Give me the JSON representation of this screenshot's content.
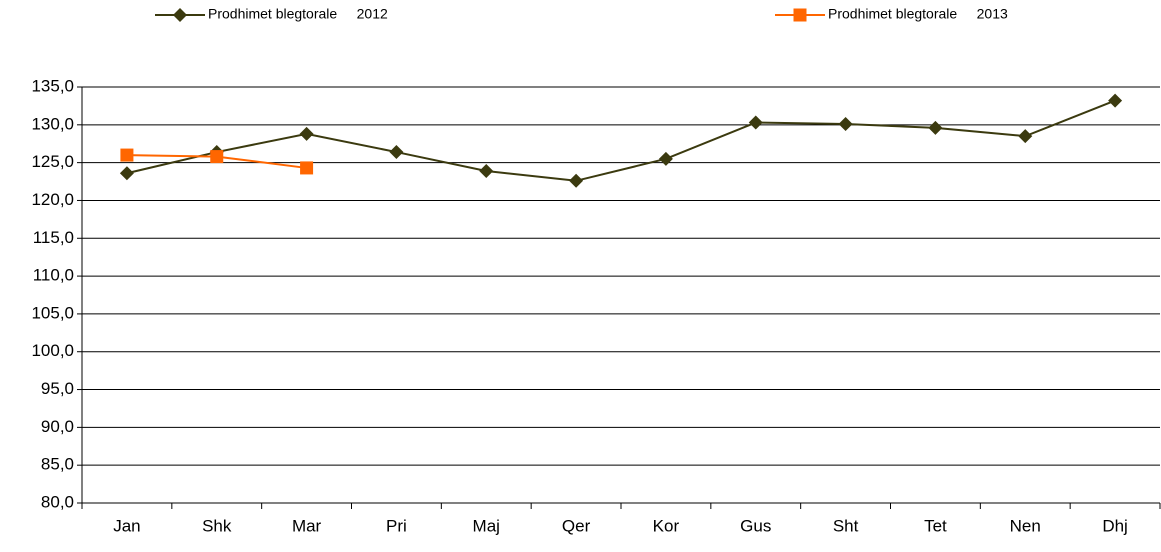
{
  "chart_data": {
    "type": "line",
    "categories": [
      "Jan",
      "Shk",
      "Mar",
      "Pri",
      "Maj",
      "Qer",
      "Kor",
      "Gus",
      "Sht",
      "Tet",
      "Nen",
      "Dhj"
    ],
    "series": [
      {
        "name": "Prodhimet blegtorale     2012",
        "color": "#3b3a0f",
        "marker": "diamond",
        "values": [
          123.6,
          126.4,
          128.8,
          126.4,
          123.9,
          122.6,
          125.5,
          130.3,
          130.1,
          129.6,
          128.5,
          133.2
        ]
      },
      {
        "name": "Prodhimet blegtorale     2013",
        "color": "#ff6600",
        "marker": "square",
        "values": [
          126.0,
          125.8,
          124.3,
          null,
          null,
          null,
          null,
          null,
          null,
          null,
          null,
          null
        ]
      }
    ],
    "ylim": [
      80,
      135
    ],
    "yticks": [
      {
        "value": 80,
        "label": "80,0"
      },
      {
        "value": 85,
        "label": "85,0"
      },
      {
        "value": 90,
        "label": "90,0"
      },
      {
        "value": 95,
        "label": "95,0"
      },
      {
        "value": 100,
        "label": "100,0"
      },
      {
        "value": 105,
        "label": "105,0"
      },
      {
        "value": 110,
        "label": "110,0"
      },
      {
        "value": 115,
        "label": "115,0"
      },
      {
        "value": 120,
        "label": "120,0"
      },
      {
        "value": 125,
        "label": "125,0"
      },
      {
        "value": 130,
        "label": "130,0"
      },
      {
        "value": 135,
        "label": "135,0"
      }
    ],
    "grid": true
  }
}
